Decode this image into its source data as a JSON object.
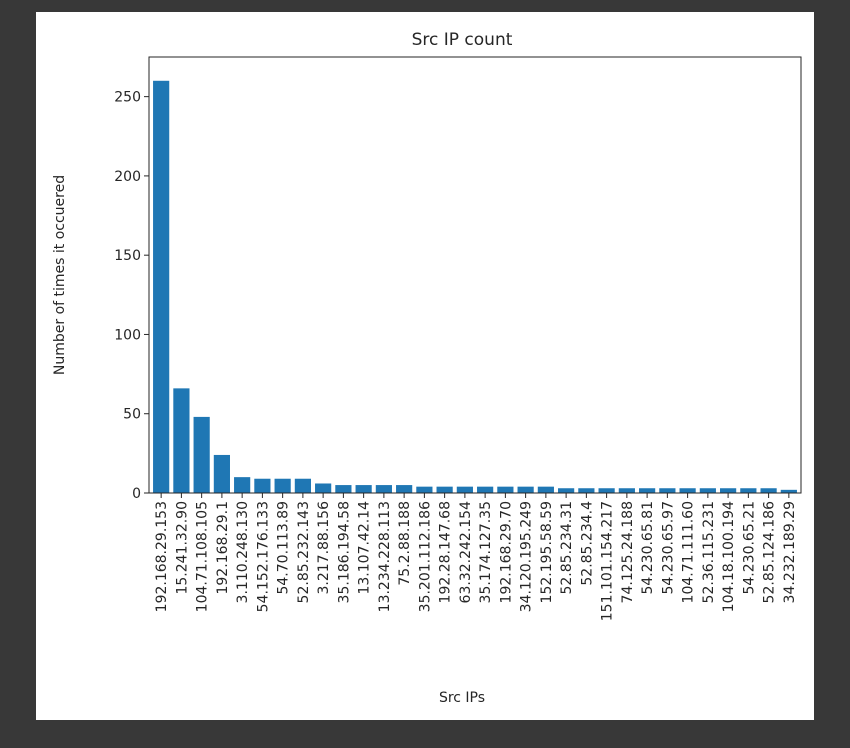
{
  "chart_data": {
    "type": "bar",
    "title": "Src IP count",
    "xlabel": "Src IPs",
    "ylabel": "Number of times it occuered",
    "ylim": [
      0,
      275
    ],
    "yticks": [
      0,
      50,
      100,
      150,
      200,
      250
    ],
    "grid": false,
    "bar_color": "#1f77b4",
    "categories": [
      "192.168.29.153",
      "15.241.32.90",
      "104.71.108.105",
      "192.168.29.1",
      "3.110.248.130",
      "54.152.176.133",
      "54.70.113.89",
      "52.85.232.143",
      "3.217.88.156",
      "35.186.194.58",
      "13.107.42.14",
      "13.234.228.113",
      "75.2.88.188",
      "35.201.112.186",
      "192.28.147.68",
      "63.32.242.154",
      "35.174.127.35",
      "192.168.29.70",
      "34.120.195.249",
      "152.195.58.59",
      "52.85.234.31",
      "52.85.234.4",
      "151.101.154.217",
      "74.125.24.188",
      "54.230.65.81",
      "54.230.65.97",
      "104.71.111.60",
      "52.36.115.231",
      "104.18.100.194",
      "54.230.65.21",
      "52.85.124.186",
      "34.232.189.29"
    ],
    "values": [
      260,
      66,
      48,
      24,
      10,
      9,
      9,
      9,
      6,
      5,
      5,
      5,
      5,
      4,
      4,
      4,
      4,
      4,
      4,
      4,
      3,
      3,
      3,
      3,
      3,
      3,
      3,
      3,
      3,
      3,
      3,
      2
    ]
  }
}
